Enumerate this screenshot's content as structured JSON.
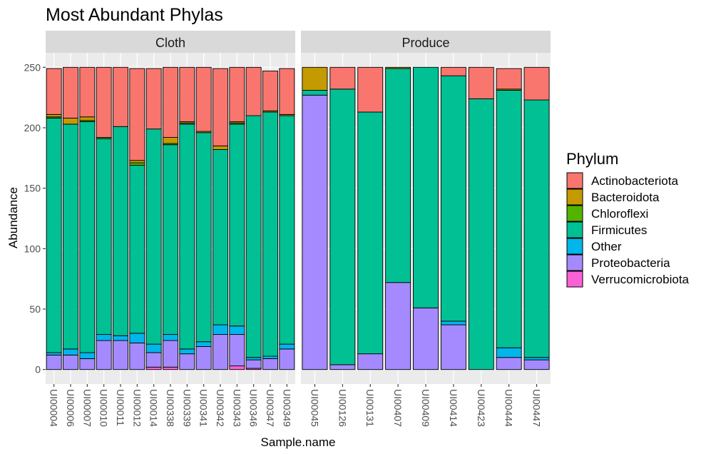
{
  "chart_data": {
    "type": "bar",
    "stacked": true,
    "title": "Most Abundant Phylas",
    "xlabel": "Sample.name",
    "ylabel": "Abundance",
    "ylim": [
      -12,
      262
    ],
    "yticks": [
      0,
      50,
      100,
      150,
      200,
      250
    ],
    "legend": {
      "title": "Phylum",
      "position": "right",
      "entries": [
        {
          "name": "Actinobacteriota",
          "color": "#F8766D"
        },
        {
          "name": "Bacteroidota",
          "color": "#C49A00"
        },
        {
          "name": "Chloroflexi",
          "color": "#53B400"
        },
        {
          "name": "Firmicutes",
          "color": "#00C094"
        },
        {
          "name": "Other",
          "color": "#00B6EB"
        },
        {
          "name": "Proteobacteria",
          "color": "#A58AFF"
        },
        {
          "name": "Verrucomicrobiota",
          "color": "#FB61D7"
        }
      ]
    },
    "stack_order_bottom_to_top": [
      "Verrucomicrobiota",
      "Proteobacteria",
      "Other",
      "Firmicutes",
      "Chloroflexi",
      "Bacteroidota",
      "Actinobacteriota"
    ],
    "panels": [
      {
        "label": "Cloth",
        "categories": [
          "UI00004",
          "UI00006",
          "UI00007",
          "UI00010",
          "UI00011",
          "UI00012",
          "UI00014",
          "UI00338",
          "UI00339",
          "UI00341",
          "UI00342",
          "UI00343",
          "UI00346",
          "UI00347",
          "UI00349"
        ],
        "series": [
          {
            "name": "Verrucomicrobiota",
            "values": [
              0,
              0,
              0,
              0,
              0,
              0,
              2,
              2,
              0,
              0,
              0,
              3,
              1,
              0,
              0
            ]
          },
          {
            "name": "Proteobacteria",
            "values": [
              12,
              12,
              9,
              24,
              24,
              22,
              12,
              22,
              13,
              19,
              29,
              26,
              7,
              9,
              17
            ]
          },
          {
            "name": "Other",
            "values": [
              2,
              5,
              5,
              5,
              4,
              8,
              7,
              5,
              4,
              4,
              8,
              7,
              2,
              2,
              4
            ]
          },
          {
            "name": "Firmicutes",
            "values": [
              194,
              186,
              191,
              162,
              173,
              139,
              178,
              157,
              186,
              173,
              145,
              167,
              200,
              202,
              189
            ]
          },
          {
            "name": "Chloroflexi",
            "values": [
              1,
              0,
              1,
              1,
              0,
              2,
              0,
              1,
              1,
              0,
              0,
              1,
              0,
              0,
              0
            ]
          },
          {
            "name": "Bacteroidota",
            "values": [
              2,
              5,
              3,
              0,
              0,
              2,
              0,
              5,
              1,
              1,
              3,
              1,
              0,
              1,
              1
            ]
          },
          {
            "name": "Actinobacteriota",
            "values": [
              38,
              42,
              41,
              58,
              49,
              76,
              50,
              58,
              45,
              53,
              64,
              45,
              40,
              33,
              38
            ]
          }
        ]
      },
      {
        "label": "Produce",
        "categories": [
          "UI00045",
          "UI00126",
          "UI00131",
          "UI00407",
          "UI00409",
          "UI00414",
          "UI00423",
          "UI00444",
          "UI00447"
        ],
        "series": [
          {
            "name": "Verrucomicrobiota",
            "values": [
              0,
              0,
              0,
              0,
              0,
              0,
              0,
              0,
              0
            ]
          },
          {
            "name": "Proteobacteria",
            "values": [
              227,
              4,
              13,
              72,
              51,
              37,
              0,
              10,
              8
            ]
          },
          {
            "name": "Other",
            "values": [
              0,
              0,
              0,
              0,
              0,
              3,
              0,
              8,
              2
            ]
          },
          {
            "name": "Firmicutes",
            "values": [
              4,
              228,
              200,
              177,
              199,
              203,
              224,
              213,
              213
            ]
          },
          {
            "name": "Chloroflexi",
            "values": [
              0,
              0,
              0,
              0,
              0,
              0,
              0,
              0,
              0
            ]
          },
          {
            "name": "Bacteroidota",
            "values": [
              19,
              0,
              0,
              1,
              0,
              0,
              0,
              1,
              0
            ]
          },
          {
            "name": "Actinobacteriota",
            "values": [
              0,
              18,
              37,
              0,
              0,
              7,
              26,
              17,
              27
            ]
          }
        ]
      }
    ],
    "grid": true
  }
}
